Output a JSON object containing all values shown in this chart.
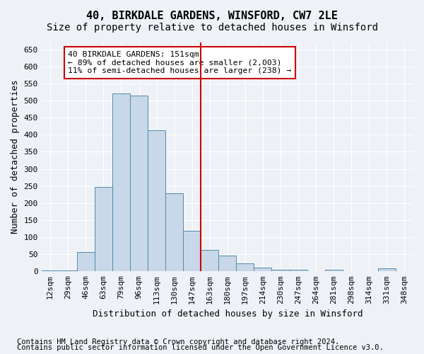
{
  "title": "40, BIRKDALE GARDENS, WINSFORD, CW7 2LE",
  "subtitle": "Size of property relative to detached houses in Winsford",
  "xlabel": "Distribution of detached houses by size in Winsford",
  "ylabel": "Number of detached properties",
  "footnote1": "Contains HM Land Registry data © Crown copyright and database right 2024.",
  "footnote2": "Contains public sector information licensed under the Open Government Licence v3.0.",
  "bins": [
    "12sqm",
    "29sqm",
    "46sqm",
    "63sqm",
    "79sqm",
    "96sqm",
    "113sqm",
    "130sqm",
    "147sqm",
    "163sqm",
    "180sqm",
    "197sqm",
    "214sqm",
    "230sqm",
    "247sqm",
    "264sqm",
    "281sqm",
    "298sqm",
    "314sqm",
    "331sqm",
    "348sqm"
  ],
  "values": [
    3,
    3,
    57,
    248,
    521,
    515,
    414,
    228,
    118,
    62,
    47,
    23,
    10,
    5,
    5,
    0,
    4,
    0,
    0,
    8,
    0
  ],
  "bar_color": "#c8d8e8",
  "bar_edge_color": "#5588aa",
  "vline_x": 8.5,
  "vline_color": "#cc0000",
  "annotation_text": "40 BIRKDALE GARDENS: 151sqm\n← 89% of detached houses are smaller (2,003)\n11% of semi-detached houses are larger (238) →",
  "annotation_box_color": "#ffffff",
  "annotation_box_edge_color": "#cc0000",
  "ylim": [
    0,
    670
  ],
  "yticks": [
    0,
    50,
    100,
    150,
    200,
    250,
    300,
    350,
    400,
    450,
    500,
    550,
    600,
    650
  ],
  "bg_color": "#eef2f7",
  "plot_bg_color": "#eef2f7",
  "grid_color": "#ffffff",
  "title_fontsize": 11,
  "subtitle_fontsize": 10,
  "label_fontsize": 9,
  "tick_fontsize": 8,
  "footnote_fontsize": 7.5
}
